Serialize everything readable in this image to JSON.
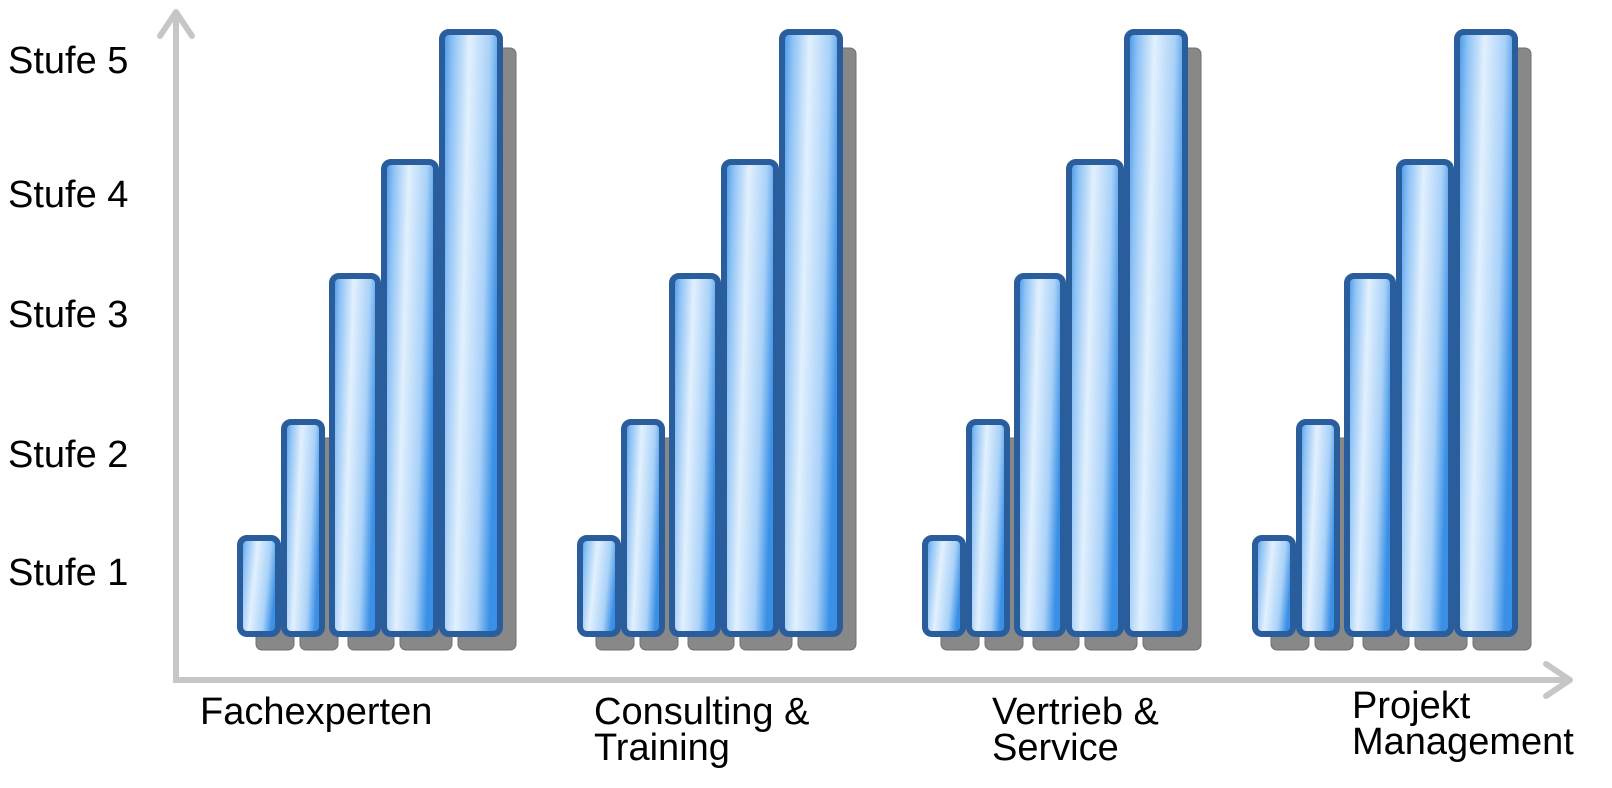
{
  "chart_data": {
    "type": "bar",
    "title": "",
    "xlabel": "",
    "ylabel": "",
    "y_levels": [
      "Stufe 1",
      "Stufe 2",
      "Stufe 3",
      "Stufe 4",
      "Stufe 5"
    ],
    "ylim": [
      0,
      5
    ],
    "categories": [
      {
        "lines": [
          "Fachexperten"
        ],
        "values": [
          1,
          2,
          3,
          4,
          5
        ]
      },
      {
        "lines": [
          "Consulting &",
          "Training"
        ],
        "values": [
          1,
          2,
          3,
          4,
          5
        ]
      },
      {
        "lines": [
          "Vertrieb &",
          "Service"
        ],
        "values": [
          1,
          2,
          3,
          4,
          5
        ]
      },
      {
        "lines": [
          "Projekt",
          "Management"
        ],
        "values": [
          1,
          2,
          3,
          4,
          5
        ]
      }
    ],
    "grid": false,
    "legend": "none",
    "colors": {
      "bar_border": "#2a5d9c",
      "bar_fill_light": "#e2f0fd",
      "bar_fill_mid": "#8ec2f5",
      "bar_fill_dark": "#3a90e6",
      "shadow": "#888888",
      "axis": "#c6c6c6"
    }
  }
}
